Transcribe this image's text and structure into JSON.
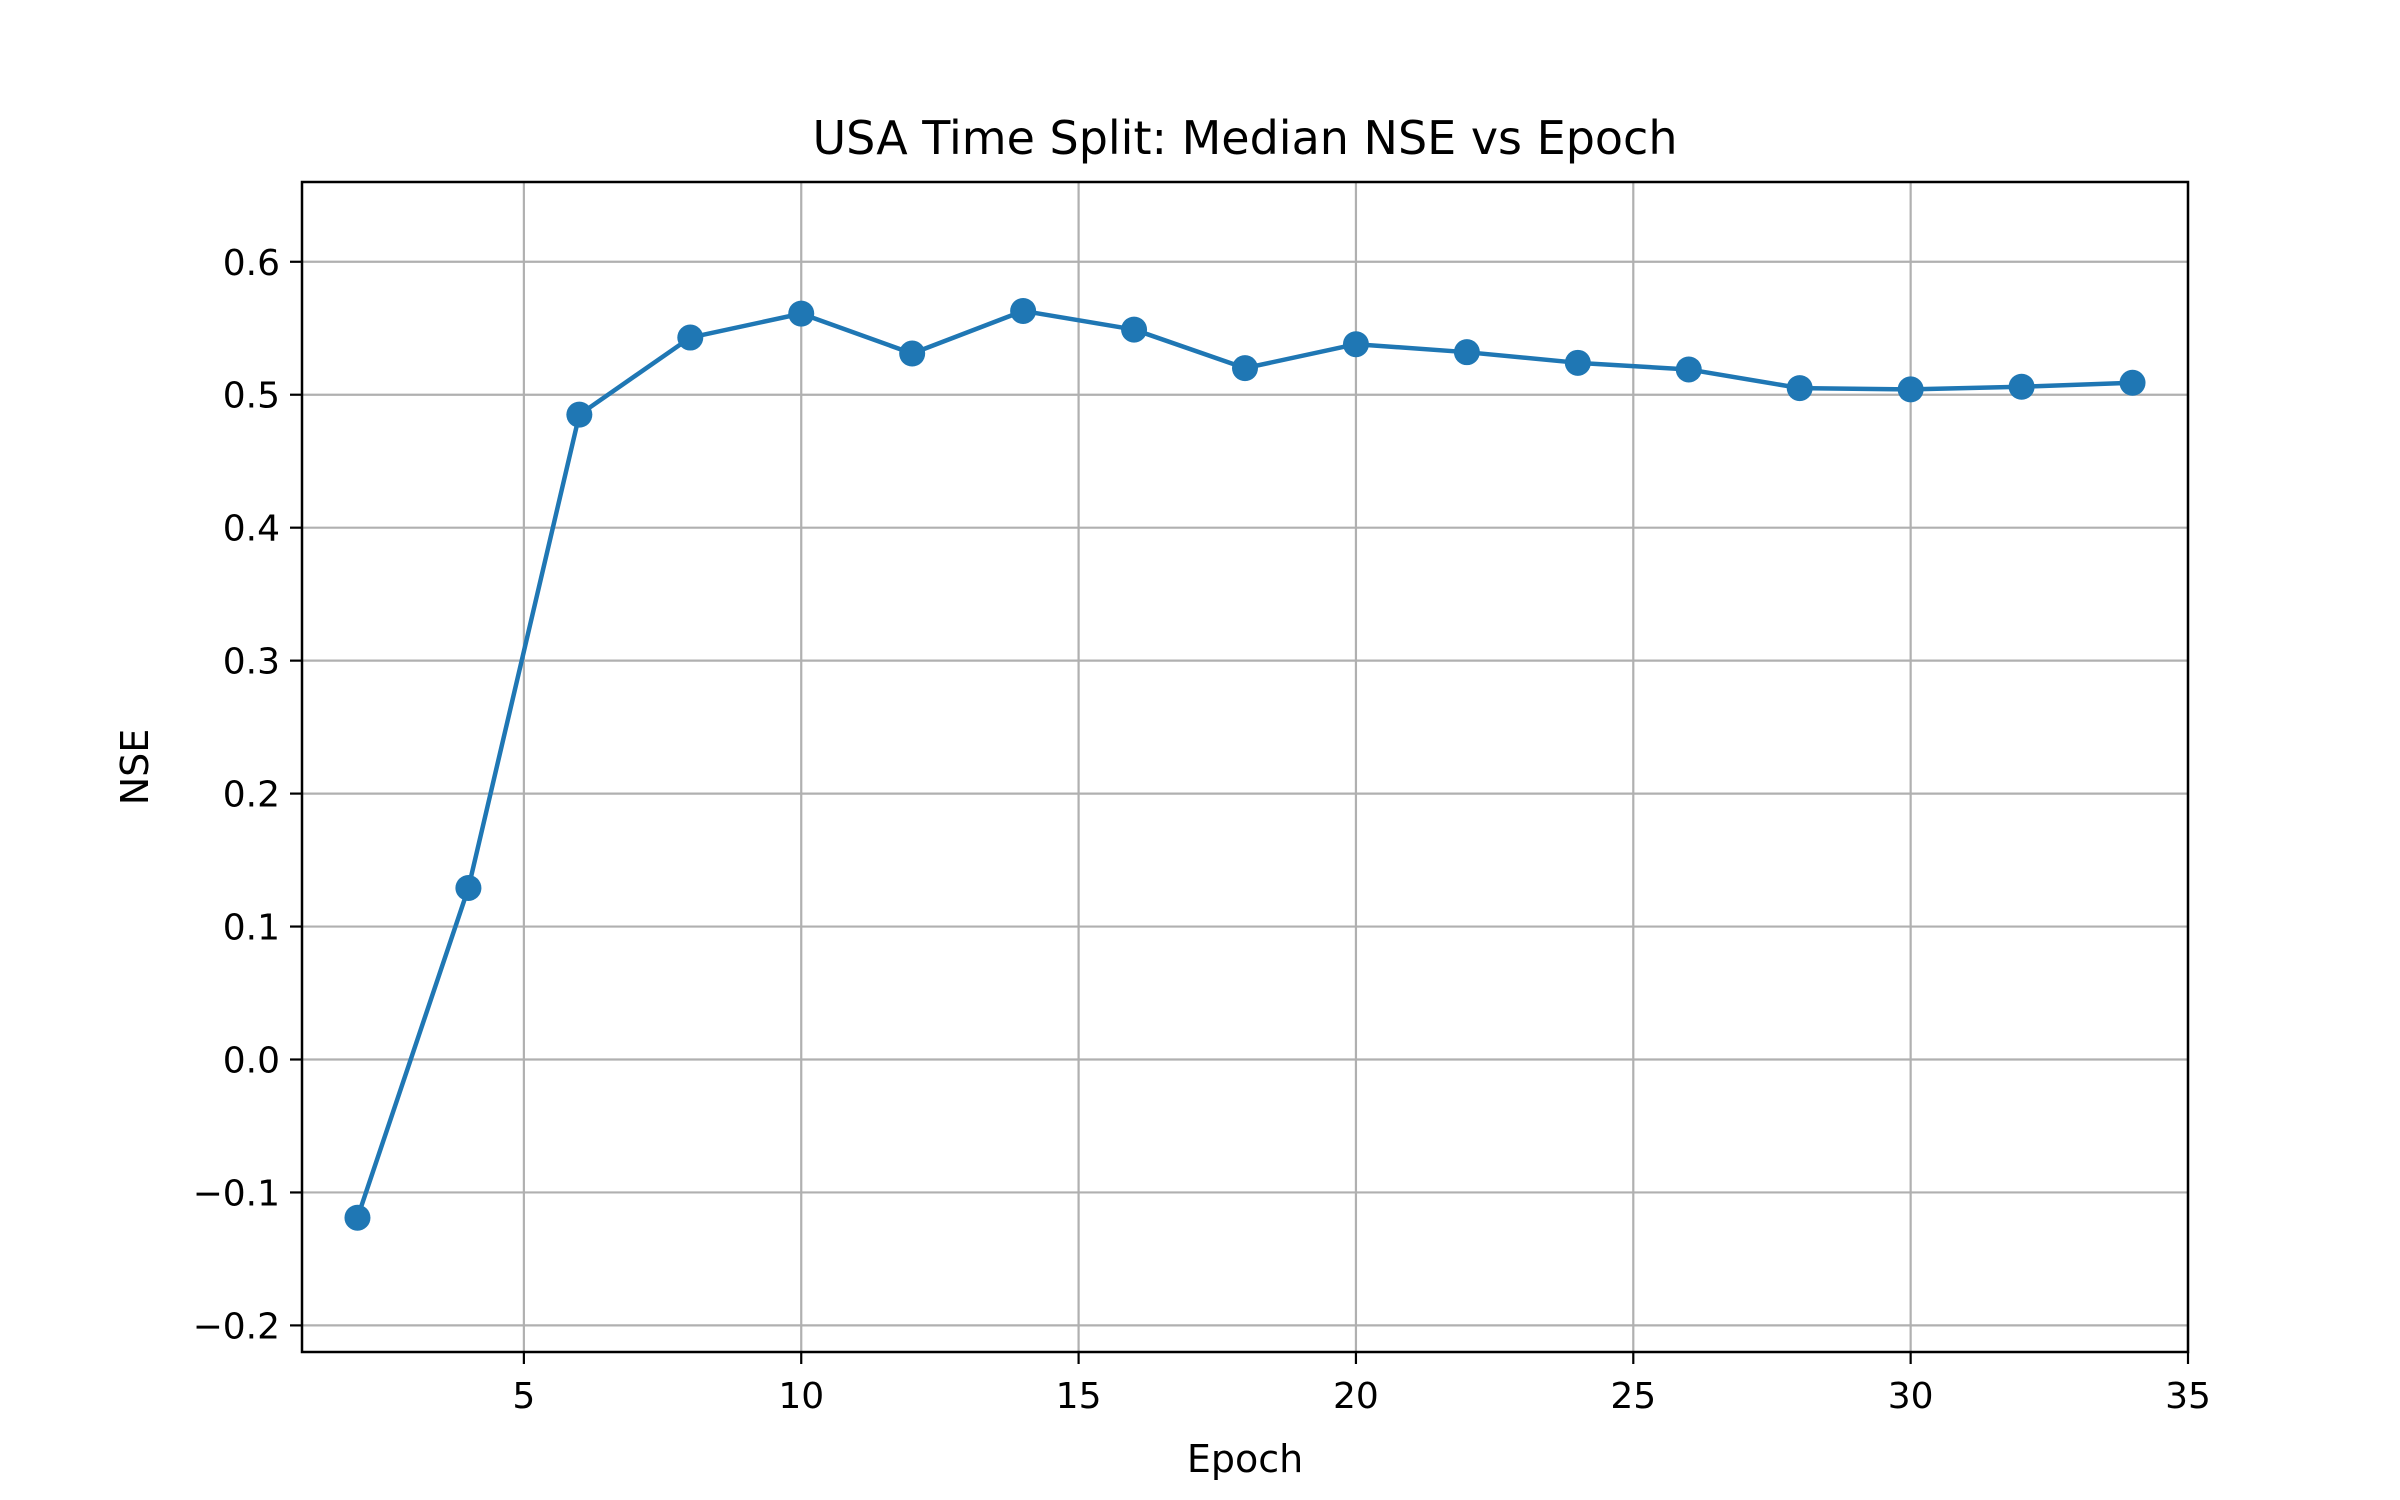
{
  "chart_data": {
    "type": "line",
    "title": "USA Time Split: Median NSE vs Epoch",
    "xlabel": "Epoch",
    "ylabel": "NSE",
    "xlim": [
      1,
      35
    ],
    "ylim": [
      -0.22,
      0.66
    ],
    "xticks": [
      5,
      10,
      15,
      20,
      25,
      30,
      35
    ],
    "yticks": [
      -0.2,
      -0.1,
      0.0,
      0.1,
      0.2,
      0.3,
      0.4,
      0.5,
      0.6
    ],
    "xtick_labels": [
      "5",
      "10",
      "15",
      "20",
      "25",
      "30",
      "35"
    ],
    "ytick_labels": [
      "−0.2",
      "−0.1",
      "0.0",
      "0.1",
      "0.2",
      "0.3",
      "0.4",
      "0.5",
      "0.6"
    ],
    "grid": true,
    "series": [
      {
        "color": "#1f77b4",
        "marker": "circle",
        "x": [
          2,
          4,
          6,
          8,
          10,
          12,
          14,
          16,
          18,
          20,
          22,
          24,
          26,
          28,
          30,
          32,
          34
        ],
        "y": [
          -0.119,
          0.129,
          0.485,
          0.543,
          0.561,
          0.531,
          0.563,
          0.549,
          0.52,
          0.538,
          0.532,
          0.524,
          0.519,
          0.505,
          0.504,
          0.506,
          0.509
        ]
      }
    ]
  }
}
